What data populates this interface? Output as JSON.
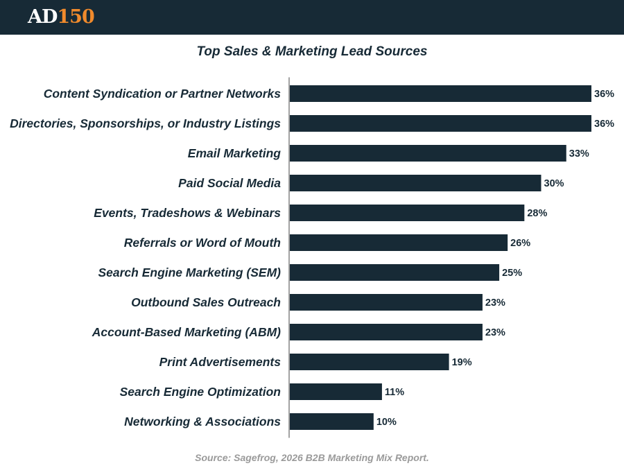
{
  "header": {
    "logo_part_a": "AD",
    "logo_part_b": "150"
  },
  "colors": {
    "bar": "#172a36",
    "header_bg": "#172a36",
    "logo_accent": "#f08a2c",
    "source_text": "#9a9a9a"
  },
  "chart_data": {
    "type": "bar",
    "orientation": "horizontal",
    "title": "Top Sales & Marketing Lead Sources",
    "categories": [
      "Content Syndication or Partner Networks",
      "Directories, Sponsorships, or Industry Listings",
      "Email Marketing",
      "Paid Social Media",
      "Events, Tradeshows & Webinars",
      "Referrals or Word of Mouth",
      "Search Engine Marketing (SEM)",
      "Outbound Sales Outreach",
      "Account-Based Marketing (ABM)",
      "Print Advertisements",
      "Search Engine Optimization",
      "Networking & Associations"
    ],
    "values": [
      36,
      36,
      33,
      30,
      28,
      26,
      25,
      23,
      23,
      19,
      11,
      10
    ],
    "value_labels": [
      "36%",
      "36%",
      "33%",
      "30%",
      "28%",
      "26%",
      "25%",
      "23%",
      "23%",
      "19%",
      "11%",
      "10%"
    ],
    "xlim": [
      0,
      36
    ],
    "grid": false,
    "legend": "none"
  },
  "source": "Source: Sagefrog, 2026 B2B Marketing Mix Report."
}
